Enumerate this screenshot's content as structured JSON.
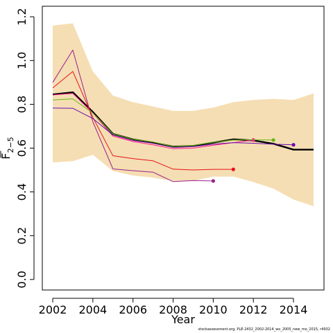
{
  "chart_data": {
    "type": "line",
    "xlabel": "Year",
    "ylabel_base": "F",
    "ylabel_sub": "2−5",
    "xlim": [
      2002,
      2015
    ],
    "ylim": [
      0,
      1.2
    ],
    "x_ticks": [
      2002,
      2004,
      2006,
      2008,
      2010,
      2012,
      2014
    ],
    "y_ticks": [
      0.0,
      0.2,
      0.4,
      0.6,
      0.8,
      1.0,
      1.2
    ],
    "y_tick_labels": [
      "0.0",
      "0.2",
      "0.4",
      "0.6",
      "0.8",
      "1.0",
      "1.2"
    ],
    "band": {
      "color": "#f5deb3",
      "x": [
        2002,
        2003,
        2004,
        2005,
        2006,
        2007,
        2008,
        2009,
        2010,
        2011,
        2012,
        2013,
        2014,
        2015
      ],
      "upper": [
        1.16,
        1.17,
        0.95,
        0.84,
        0.81,
        0.79,
        0.77,
        0.77,
        0.785,
        0.81,
        0.82,
        0.825,
        0.82,
        0.85
      ],
      "lower": [
        0.535,
        0.54,
        0.57,
        0.495,
        0.475,
        0.465,
        0.45,
        0.45,
        0.47,
        0.47,
        0.445,
        0.415,
        0.365,
        0.335
      ]
    },
    "series": [
      {
        "color": "#000000",
        "width": 2.4,
        "end_marker": false,
        "x": [
          2002,
          2003,
          2004,
          2005,
          2006,
          2007,
          2008,
          2009,
          2010,
          2011,
          2012,
          2013,
          2014,
          2015
        ],
        "values": [
          0.845,
          0.855,
          0.765,
          0.665,
          0.64,
          0.625,
          0.607,
          0.61,
          0.625,
          0.64,
          0.635,
          0.62,
          0.593,
          0.593
        ]
      },
      {
        "color": "#9a1f8a",
        "width": 1,
        "end_marker": true,
        "x": [
          2002,
          2003,
          2004,
          2005,
          2006,
          2007,
          2008,
          2009,
          2010
        ],
        "values": [
          0.9,
          1.048,
          0.72,
          0.505,
          0.497,
          0.49,
          0.447,
          0.452,
          0.45
        ]
      },
      {
        "color": "#e8101a",
        "width": 1,
        "end_marker": true,
        "x": [
          2002,
          2003,
          2004,
          2005,
          2006,
          2007,
          2008,
          2009,
          2010,
          2011
        ],
        "values": [
          0.875,
          0.95,
          0.74,
          0.565,
          0.552,
          0.542,
          0.504,
          0.5,
          0.503,
          0.503
        ]
      },
      {
        "color": "#ff1493",
        "width": 1,
        "end_marker": true,
        "x": [
          2002,
          2003,
          2004,
          2005,
          2006,
          2007,
          2008,
          2009,
          2010,
          2011,
          2012
        ],
        "values": [
          0.843,
          0.85,
          0.76,
          0.655,
          0.63,
          0.615,
          0.597,
          0.6,
          0.613,
          0.625,
          0.637
        ]
      },
      {
        "color": "#66b814",
        "width": 1,
        "end_marker": true,
        "x": [
          2002,
          2003,
          2004,
          2005,
          2006,
          2007,
          2008,
          2009,
          2010,
          2011,
          2012,
          2013
        ],
        "values": [
          0.82,
          0.825,
          0.76,
          0.665,
          0.64,
          0.628,
          0.607,
          0.612,
          0.627,
          0.637,
          0.638,
          0.637
        ]
      },
      {
        "color": "#6a0dad",
        "width": 1,
        "end_marker": true,
        "x": [
          2002,
          2003,
          2004,
          2005,
          2006,
          2007,
          2008,
          2009,
          2010,
          2011,
          2012,
          2013,
          2014
        ],
        "values": [
          0.783,
          0.782,
          0.735,
          0.66,
          0.635,
          0.622,
          0.603,
          0.607,
          0.618,
          0.625,
          0.622,
          0.618,
          0.615
        ]
      }
    ]
  },
  "footnote": "stockassessment.org, PLE-2432_2002-2014_wo_2005_new_mo_2015, r4932"
}
